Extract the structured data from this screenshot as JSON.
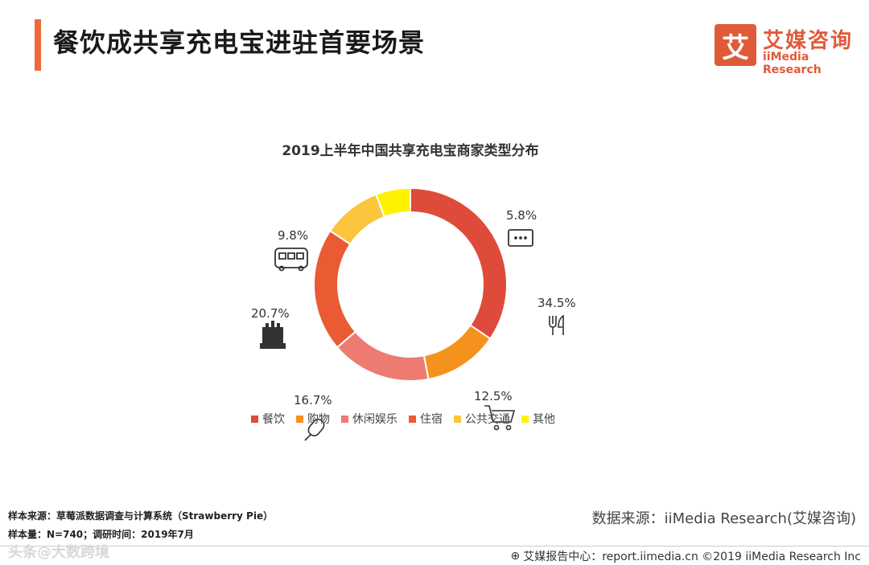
{
  "header": {
    "title": "餐饮成共享充电宝进驻首要场景",
    "accent_color": "#ee6a3c"
  },
  "logo": {
    "mark": "艾",
    "name_cn": "艾媒咨询",
    "name_en": "iiMedia Research",
    "color": "#e05a38"
  },
  "chart_data": {
    "type": "pie",
    "donut": true,
    "title": "2019上半年中国共享充电宝商家类型分布",
    "categories": [
      "餐饮",
      "购物",
      "休闲娱乐",
      "住宿",
      "公共交通",
      "其他"
    ],
    "values": [
      34.5,
      12.5,
      16.7,
      20.7,
      9.8,
      5.8
    ],
    "value_labels": [
      "34.5%",
      "12.5%",
      "16.7%",
      "20.7%",
      "9.8%",
      "5.8%"
    ],
    "colors": [
      "#de4b3a",
      "#f5921e",
      "#ee7b72",
      "#ea5b33",
      "#fbc53d",
      "#fff200"
    ],
    "legend_position": "bottom"
  },
  "icons": [
    "fork-knife-icon",
    "shopping-cart-icon",
    "microphone-icon",
    "hotel-icon",
    "bus-icon",
    "message-icon"
  ],
  "footer": {
    "sample_source": "样本来源：草莓派数据调查与计算系统（Strawberry Pie）",
    "sample_size": "样本量：N=740；调研时间：2019年7月",
    "data_source": "数据来源：iiMedia Research(艾媒咨询)",
    "report_center": "艾媒报告中心：report.iimedia.cn  ©2019  iiMedia Research  Inc",
    "watermark": "头条@大数跨境"
  }
}
